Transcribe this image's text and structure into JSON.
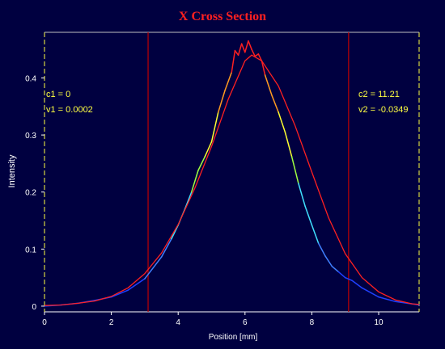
{
  "chart_data": {
    "type": "line",
    "title": "X Cross Section",
    "xlabel": "Position [mm]",
    "ylabel": "Intensity",
    "xlim": [
      0,
      11.21
    ],
    "ylim": [
      -0.01,
      0.48
    ],
    "x_ticks": [
      0,
      2,
      4,
      6,
      8,
      10
    ],
    "y_ticks": [
      0,
      0.1,
      0.2,
      0.3,
      0.4
    ],
    "grid": false,
    "cursors": [
      {
        "x": 3.1,
        "c_label": "c1 = 0",
        "v_label": "v1 = 0.0002"
      },
      {
        "x": 9.1,
        "c_label": "c2 = 11.21",
        "v_label": "v2 = -0.0349"
      }
    ],
    "series": [
      {
        "role": "measured",
        "style": "intensity-colored",
        "x": [
          0,
          0.5,
          1,
          1.5,
          2,
          2.5,
          3,
          3.5,
          3.8,
          4,
          4.2,
          4.4,
          4.6,
          4.8,
          5,
          5.2,
          5.4,
          5.6,
          5.7,
          5.8,
          5.9,
          6,
          6.1,
          6.2,
          6.3,
          6.4,
          6.5,
          6.6,
          6.8,
          7,
          7.2,
          7.4,
          7.6,
          7.8,
          8,
          8.2,
          8.4,
          8.6,
          8.8,
          9,
          9.2,
          9.5,
          10,
          10.5,
          11,
          11.21
        ],
        "y": [
          0,
          0.002,
          0.005,
          0.01,
          0.016,
          0.028,
          0.048,
          0.086,
          0.118,
          0.142,
          0.17,
          0.2,
          0.238,
          0.262,
          0.288,
          0.34,
          0.378,
          0.41,
          0.448,
          0.44,
          0.46,
          0.445,
          0.465,
          0.45,
          0.438,
          0.442,
          0.43,
          0.405,
          0.37,
          0.34,
          0.305,
          0.262,
          0.215,
          0.175,
          0.142,
          0.11,
          0.088,
          0.07,
          0.06,
          0.05,
          0.045,
          0.032,
          0.016,
          0.008,
          0.004,
          0.002
        ]
      },
      {
        "role": "fit",
        "color": "#ff2020",
        "x": [
          0,
          0.5,
          1,
          1.5,
          2,
          2.5,
          3,
          3.5,
          4,
          4.5,
          5,
          5.5,
          6,
          6.2,
          6.5,
          7,
          7.5,
          8,
          8.5,
          9,
          9.5,
          10,
          10.5,
          11,
          11.21
        ],
        "y": [
          0.001,
          0.002,
          0.005,
          0.009,
          0.017,
          0.032,
          0.057,
          0.093,
          0.143,
          0.207,
          0.28,
          0.363,
          0.43,
          0.44,
          0.43,
          0.386,
          0.316,
          0.235,
          0.155,
          0.092,
          0.05,
          0.025,
          0.011,
          0.004,
          0.003
        ]
      }
    ]
  },
  "colors": {
    "background": "#000040",
    "title": "#ff2020",
    "cursor": "#c00000",
    "cursor_text": "#ffff40",
    "axis": "#ffffff",
    "axis_label": "#ffffff"
  }
}
